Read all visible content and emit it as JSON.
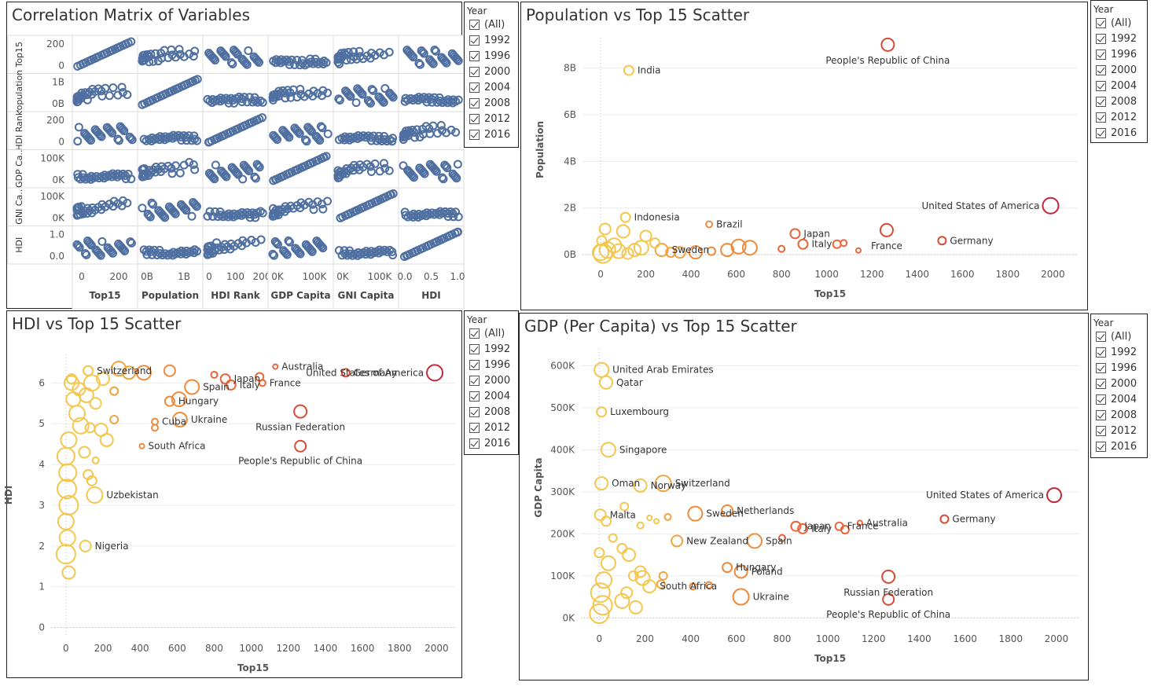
{
  "legend": {
    "title": "Year",
    "items": [
      "(All)",
      "1992",
      "1996",
      "2000",
      "2004",
      "2008",
      "2012",
      "2016"
    ]
  },
  "colors": {
    "matrix": "#4e6fa0",
    "grid": "#e6e6e6",
    "low": "#f3c64d",
    "mid": "#ee8a3a",
    "high": "#c0283b"
  },
  "chart_data": [
    {
      "type": "scatter-matrix",
      "title": "Correlation Matrix of Variables",
      "variables": [
        "Top15",
        "Population",
        "HDI Rank",
        "GDP Capita",
        "GNI Capita",
        "HDI"
      ],
      "row_labels": [
        "Top15",
        "Population",
        "HDI Rank",
        "GDP Ca..",
        "GNI Ca..",
        "HDI"
      ],
      "row_ticks": [
        [
          "200",
          "0"
        ],
        [
          "1B",
          "0B"
        ],
        [
          "200",
          "0"
        ],
        [
          "100K",
          "0K"
        ],
        [
          "100K",
          "0K"
        ],
        [
          "1.0",
          "0.0"
        ]
      ],
      "col_ticks": [
        [
          "0",
          "200"
        ],
        [
          "0B",
          "1B"
        ],
        [
          "0",
          "100",
          "200"
        ],
        [
          "0K",
          "100K"
        ],
        [
          "0K",
          "100K"
        ],
        [
          "0.0",
          "0.5",
          "1.0"
        ]
      ],
      "marker": "circle"
    },
    {
      "type": "scatter",
      "title": "Population vs Top 15 Scatter",
      "xlabel": "Top15",
      "ylabel": "Population",
      "xticks": [
        0,
        200,
        400,
        600,
        800,
        1000,
        1200,
        1400,
        1600,
        1800,
        2000
      ],
      "yticks": [
        "0B",
        "2B",
        "4B",
        "6B",
        "8B"
      ],
      "ytick_values": [
        0,
        2,
        4,
        6,
        8
      ],
      "xlim": [
        -80,
        2110
      ],
      "ylim": [
        -0.3,
        9.3
      ],
      "points": [
        {
          "x": 1270,
          "y": 9.0,
          "r": 8,
          "label": "People's Republic of China"
        },
        {
          "x": 125,
          "y": 7.9,
          "r": 6,
          "label": "India"
        },
        {
          "x": 110,
          "y": 1.6,
          "r": 6,
          "label": "Indonesia"
        },
        {
          "x": 1990,
          "y": 2.1,
          "r": 10,
          "label": "United States of America"
        },
        {
          "x": 860,
          "y": 0.9,
          "r": 6,
          "label": "Japan"
        },
        {
          "x": 1265,
          "y": 1.05,
          "r": 8,
          "label": "France"
        },
        {
          "x": 1510,
          "y": 0.6,
          "r": 5,
          "label": "Germany"
        },
        {
          "x": 895,
          "y": 0.45,
          "r": 6,
          "label": "Italy"
        },
        {
          "x": 270,
          "y": 0.2,
          "r": 8,
          "label": "Sweden"
        },
        {
          "x": 480,
          "y": 1.3,
          "r": 4,
          "label": "Brazil"
        },
        {
          "x": 1045,
          "y": 0.45,
          "r": 5
        },
        {
          "x": 1075,
          "y": 0.5,
          "r": 4
        },
        {
          "x": 1140,
          "y": 0.18,
          "r": 3
        },
        {
          "x": 800,
          "y": 0.25,
          "r": 4
        },
        {
          "x": 610,
          "y": 0.35,
          "r": 9
        },
        {
          "x": 660,
          "y": 0.3,
          "r": 9
        },
        {
          "x": 560,
          "y": 0.2,
          "r": 8
        },
        {
          "x": 420,
          "y": 0.1,
          "r": 8
        },
        {
          "x": 350,
          "y": 0.1,
          "r": 7
        },
        {
          "x": 490,
          "y": 0.15,
          "r": 5
        },
        {
          "x": 200,
          "y": 0.8,
          "r": 7
        },
        {
          "x": 180,
          "y": 0.3,
          "r": 9
        },
        {
          "x": 100,
          "y": 1.0,
          "r": 8
        },
        {
          "x": 60,
          "y": 0.4,
          "r": 9
        },
        {
          "x": 20,
          "y": 1.1,
          "r": 7
        },
        {
          "x": 10,
          "y": 0.05,
          "r": 12
        },
        {
          "x": 30,
          "y": 0.2,
          "r": 10
        },
        {
          "x": 150,
          "y": 0.2,
          "r": 8
        },
        {
          "x": 240,
          "y": 0.5,
          "r": 6
        },
        {
          "x": 310,
          "y": 0.1,
          "r": 6
        },
        {
          "x": 5,
          "y": 0.6,
          "r": 6
        },
        {
          "x": 80,
          "y": 0.15,
          "r": 9
        },
        {
          "x": 120,
          "y": 0.05,
          "r": 7
        },
        {
          "x": 0,
          "y": 0.1,
          "r": 10
        }
      ]
    },
    {
      "type": "scatter",
      "title": "HDI vs Top 15 Scatter",
      "xlabel": "Top15",
      "ylabel": "HDI",
      "xticks": [
        0,
        200,
        400,
        600,
        800,
        1000,
        1200,
        1400,
        1600,
        1800,
        2000
      ],
      "yticks": [
        "0",
        "1",
        "2",
        "3",
        "4",
        "5",
        "6"
      ],
      "ytick_values": [
        0,
        1,
        2,
        3,
        4,
        5,
        6
      ],
      "xlim": [
        -80,
        2100
      ],
      "ylim": [
        -0.2,
        6.7
      ],
      "points": [
        {
          "x": 120,
          "y": 6.3,
          "r": 6,
          "label": "Switzerland"
        },
        {
          "x": 1990,
          "y": 6.25,
          "r": 10,
          "label": "United States of America"
        },
        {
          "x": 860,
          "y": 6.1,
          "r": 6,
          "label": "Japan"
        },
        {
          "x": 1130,
          "y": 6.4,
          "r": 3,
          "label": "Australia"
        },
        {
          "x": 1510,
          "y": 6.25,
          "r": 5,
          "label": "Germany"
        },
        {
          "x": 890,
          "y": 5.95,
          "r": 6,
          "label": "Italy"
        },
        {
          "x": 1060,
          "y": 6.0,
          "r": 4,
          "label": "France"
        },
        {
          "x": 680,
          "y": 5.9,
          "r": 9,
          "label": "Spain"
        },
        {
          "x": 560,
          "y": 5.55,
          "r": 6,
          "label": "Hungary"
        },
        {
          "x": 480,
          "y": 5.05,
          "r": 4,
          "label": "Cuba"
        },
        {
          "x": 615,
          "y": 5.1,
          "r": 9,
          "label": "Ukraine"
        },
        {
          "x": 1265,
          "y": 5.3,
          "r": 8,
          "label": "Russian Federation"
        },
        {
          "x": 1265,
          "y": 4.45,
          "r": 7,
          "label": "People's Republic of China"
        },
        {
          "x": 410,
          "y": 4.45,
          "r": 3,
          "label": "South Africa"
        },
        {
          "x": 155,
          "y": 3.25,
          "r": 10,
          "label": "Uzbekistan"
        },
        {
          "x": 105,
          "y": 2.0,
          "r": 7,
          "label": "Nigeria"
        },
        {
          "x": 285,
          "y": 6.35,
          "r": 9
        },
        {
          "x": 420,
          "y": 6.25,
          "r": 9
        },
        {
          "x": 560,
          "y": 6.3,
          "r": 7
        },
        {
          "x": 800,
          "y": 6.2,
          "r": 4
        },
        {
          "x": 1045,
          "y": 6.15,
          "r": 5
        },
        {
          "x": 200,
          "y": 6.1,
          "r": 8
        },
        {
          "x": 340,
          "y": 6.25,
          "r": 8
        },
        {
          "x": 140,
          "y": 6.0,
          "r": 10
        },
        {
          "x": 260,
          "y": 5.8,
          "r": 5
        },
        {
          "x": 610,
          "y": 5.6,
          "r": 9
        },
        {
          "x": 160,
          "y": 5.5,
          "r": 7
        },
        {
          "x": 110,
          "y": 5.7,
          "r": 9
        },
        {
          "x": 260,
          "y": 5.1,
          "r": 5
        },
        {
          "x": 480,
          "y": 4.9,
          "r": 4
        },
        {
          "x": 190,
          "y": 4.85,
          "r": 8
        },
        {
          "x": 220,
          "y": 4.6,
          "r": 8
        },
        {
          "x": 130,
          "y": 4.9,
          "r": 6
        },
        {
          "x": 80,
          "y": 4.95,
          "r": 10
        },
        {
          "x": 60,
          "y": 5.25,
          "r": 10
        },
        {
          "x": 40,
          "y": 5.6,
          "r": 9
        },
        {
          "x": 30,
          "y": 6.0,
          "r": 9
        },
        {
          "x": 15,
          "y": 4.6,
          "r": 10
        },
        {
          "x": 0,
          "y": 4.2,
          "r": 11
        },
        {
          "x": 10,
          "y": 3.8,
          "r": 11
        },
        {
          "x": 5,
          "y": 3.4,
          "r": 12
        },
        {
          "x": 15,
          "y": 3.0,
          "r": 12
        },
        {
          "x": 0,
          "y": 2.6,
          "r": 10
        },
        {
          "x": 8,
          "y": 2.2,
          "r": 10
        },
        {
          "x": 0,
          "y": 1.8,
          "r": 12
        },
        {
          "x": 15,
          "y": 1.35,
          "r": 8
        },
        {
          "x": 120,
          "y": 3.75,
          "r": 6
        },
        {
          "x": 140,
          "y": 3.6,
          "r": 6
        },
        {
          "x": 100,
          "y": 4.3,
          "r": 7
        },
        {
          "x": 30,
          "y": 6.1,
          "r": 6
        },
        {
          "x": 70,
          "y": 5.85,
          "r": 8
        },
        {
          "x": 160,
          "y": 4.1,
          "r": 4
        }
      ]
    },
    {
      "type": "scatter",
      "title": "GDP (Per Capita) vs Top 15 Scatter",
      "xlabel": "Top15",
      "ylabel": "GDP Capita",
      "xticks": [
        0,
        200,
        400,
        600,
        800,
        1000,
        1200,
        1400,
        1600,
        1800,
        2000
      ],
      "yticks": [
        "0K",
        "100K",
        "200K",
        "300K",
        "400K",
        "500K",
        "600K"
      ],
      "ytick_values": [
        0,
        100,
        200,
        300,
        400,
        500,
        600
      ],
      "xlim": [
        -80,
        2100
      ],
      "ylim": [
        -20,
        640
      ],
      "points": [
        {
          "x": 10,
          "y": 590,
          "r": 9,
          "label": "United Arab Emirates"
        },
        {
          "x": 30,
          "y": 560,
          "r": 8,
          "label": "Qatar"
        },
        {
          "x": 10,
          "y": 490,
          "r": 6,
          "label": "Luxembourg"
        },
        {
          "x": 40,
          "y": 400,
          "r": 9,
          "label": "Singapore"
        },
        {
          "x": 10,
          "y": 320,
          "r": 8,
          "label": "Oman"
        },
        {
          "x": 180,
          "y": 315,
          "r": 8,
          "label": "Norway"
        },
        {
          "x": 280,
          "y": 320,
          "r": 10,
          "label": "Switzerland"
        },
        {
          "x": 1990,
          "y": 292,
          "r": 9,
          "label": "United States of America"
        },
        {
          "x": 560,
          "y": 255,
          "r": 7,
          "label": "Netherlands"
        },
        {
          "x": 420,
          "y": 248,
          "r": 9,
          "label": "Sweden"
        },
        {
          "x": 860,
          "y": 218,
          "r": 6,
          "label": "Japan"
        },
        {
          "x": 890,
          "y": 212,
          "r": 6,
          "label": "Italy"
        },
        {
          "x": 1050,
          "y": 218,
          "r": 5,
          "label": "France"
        },
        {
          "x": 1140,
          "y": 226,
          "r": 3,
          "label": "Australia"
        },
        {
          "x": 1510,
          "y": 235,
          "r": 5,
          "label": "Germany"
        },
        {
          "x": 5,
          "y": 245,
          "r": 7,
          "label": "Malta"
        },
        {
          "x": 680,
          "y": 183,
          "r": 9,
          "label": "Spain"
        },
        {
          "x": 340,
          "y": 183,
          "r": 7,
          "label": "New Zealand"
        },
        {
          "x": 560,
          "y": 120,
          "r": 6,
          "label": "Hungary"
        },
        {
          "x": 620,
          "y": 110,
          "r": 8,
          "label": "Poland"
        },
        {
          "x": 1265,
          "y": 98,
          "r": 8,
          "label": "Russian Federation"
        },
        {
          "x": 1265,
          "y": 44,
          "r": 7,
          "label": "People's Republic of China"
        },
        {
          "x": 620,
          "y": 50,
          "r": 10,
          "label": "Ukraine"
        },
        {
          "x": 220,
          "y": 75,
          "r": 8,
          "label": "South Africa"
        },
        {
          "x": 800,
          "y": 190,
          "r": 4
        },
        {
          "x": 1075,
          "y": 210,
          "r": 5
        },
        {
          "x": 300,
          "y": 240,
          "r": 4
        },
        {
          "x": 220,
          "y": 238,
          "r": 3
        },
        {
          "x": 180,
          "y": 220,
          "r": 4
        },
        {
          "x": 110,
          "y": 265,
          "r": 5
        },
        {
          "x": 30,
          "y": 230,
          "r": 6
        },
        {
          "x": 100,
          "y": 165,
          "r": 6
        },
        {
          "x": 130,
          "y": 150,
          "r": 8
        },
        {
          "x": 40,
          "y": 130,
          "r": 9
        },
        {
          "x": 180,
          "y": 110,
          "r": 7
        },
        {
          "x": 190,
          "y": 95,
          "r": 9
        },
        {
          "x": 150,
          "y": 100,
          "r": 6
        },
        {
          "x": 280,
          "y": 100,
          "r": 5
        },
        {
          "x": 270,
          "y": 80,
          "r": 5
        },
        {
          "x": 410,
          "y": 75,
          "r": 4
        },
        {
          "x": 480,
          "y": 78,
          "r": 4
        },
        {
          "x": 250,
          "y": 230,
          "r": 3
        },
        {
          "x": 20,
          "y": 90,
          "r": 10
        },
        {
          "x": 5,
          "y": 60,
          "r": 12
        },
        {
          "x": 15,
          "y": 30,
          "r": 12
        },
        {
          "x": 0,
          "y": 10,
          "r": 12
        },
        {
          "x": 100,
          "y": 40,
          "r": 9
        },
        {
          "x": 160,
          "y": 25,
          "r": 8
        },
        {
          "x": 120,
          "y": 60,
          "r": 7
        },
        {
          "x": 60,
          "y": 190,
          "r": 5
        },
        {
          "x": 0,
          "y": 155,
          "r": 6
        }
      ]
    }
  ]
}
